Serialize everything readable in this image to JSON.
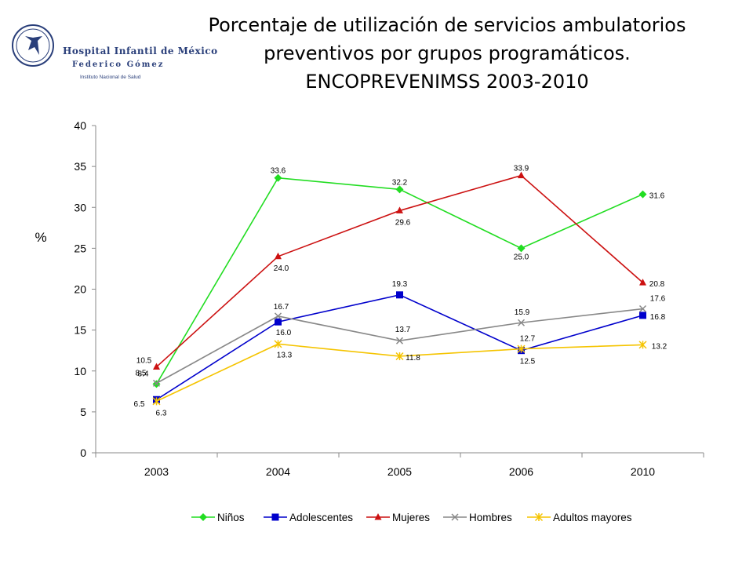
{
  "header": {
    "logo_name": "Hospital Infantil de México",
    "logo_sub": "Federico Gómez",
    "logo_inst": "Instituto Nacional de Salud",
    "title_lines": [
      "Porcentaje de utilización de servicios ambulatorios",
      "preventivos por grupos programáticos.",
      "ENCOPREVENIMSS 2003-2010"
    ]
  },
  "chart_data": {
    "type": "line",
    "categories": [
      "2003",
      "2004",
      "2005",
      "2006",
      "2010"
    ],
    "ylabel": "%",
    "ylim": [
      0,
      40
    ],
    "yticks": [
      0,
      5,
      10,
      15,
      20,
      25,
      30,
      35,
      40
    ],
    "grid": false,
    "legend_position": "bottom",
    "series": [
      {
        "name": "Niños",
        "color": "#22dd22",
        "marker": "diamond",
        "values": [
          8.4,
          33.6,
          32.2,
          25.0,
          31.6
        ],
        "labels": [
          "8.4",
          "33.6",
          "32.2",
          "25.0",
          "31.6"
        ]
      },
      {
        "name": "Adolescentes",
        "color": "#0000cc",
        "marker": "square",
        "values": [
          6.5,
          16.0,
          19.3,
          12.5,
          16.8
        ],
        "labels": [
          "6.5",
          "16.0",
          "19.3",
          "12.5",
          "16.8"
        ]
      },
      {
        "name": "Mujeres",
        "color": "#cc1111",
        "marker": "triangle",
        "values": [
          10.5,
          24.0,
          29.6,
          33.9,
          20.8
        ],
        "labels": [
          "10.5",
          "24.0",
          "29.6",
          "33.9",
          "20.8"
        ]
      },
      {
        "name": "Hombres",
        "color": "#888888",
        "marker": "x",
        "values": [
          8.5,
          16.7,
          13.7,
          15.9,
          17.6
        ],
        "labels": [
          "8.5",
          "16.7",
          "13.7",
          "15.9",
          "17.6"
        ]
      },
      {
        "name": "Adultos mayores",
        "color": "#f5c400",
        "marker": "star",
        "values": [
          6.3,
          13.3,
          11.8,
          12.7,
          13.2
        ],
        "labels": [
          "6.3",
          "13.3",
          "11.8",
          "12.7",
          "13.2"
        ]
      }
    ]
  }
}
